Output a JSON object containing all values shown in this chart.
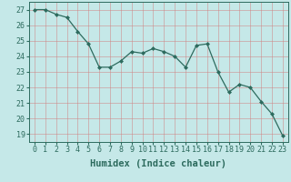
{
  "x": [
    0,
    1,
    2,
    3,
    4,
    5,
    6,
    7,
    8,
    9,
    10,
    11,
    12,
    13,
    14,
    15,
    16,
    17,
    18,
    19,
    20,
    21,
    22,
    23
  ],
  "y": [
    27.0,
    27.0,
    26.7,
    26.5,
    25.6,
    24.8,
    23.3,
    23.3,
    23.7,
    24.3,
    24.2,
    24.5,
    24.3,
    24.0,
    23.3,
    24.7,
    24.8,
    23.0,
    21.7,
    22.2,
    22.0,
    21.1,
    20.3,
    18.9
  ],
  "line_color": "#2d6b5e",
  "marker": "D",
  "marker_size": 2.0,
  "bg_color": "#c5e8e8",
  "grid_color": "#add4d4",
  "xlabel": "Humidex (Indice chaleur)",
  "ylabel_ticks": [
    19,
    20,
    21,
    22,
    23,
    24,
    25,
    26,
    27
  ],
  "xlim": [
    -0.5,
    23.5
  ],
  "ylim": [
    18.5,
    27.5
  ],
  "tick_color": "#2d6b5e",
  "label_color": "#2d6b5e",
  "xlabel_fontsize": 7.5,
  "tick_fontsize": 6.0,
  "linewidth": 0.9
}
